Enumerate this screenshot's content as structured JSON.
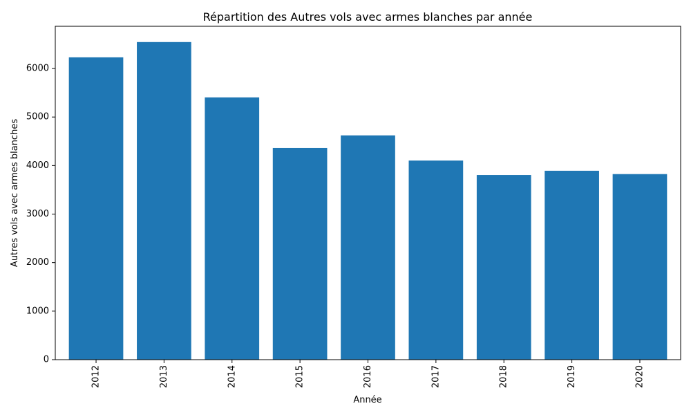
{
  "chart_data": {
    "type": "bar",
    "title": "Répartition des Autres vols avec armes blanches par année",
    "xlabel": "Année",
    "ylabel": "Autres vols avec armes blanches",
    "categories": [
      "2012",
      "2013",
      "2014",
      "2015",
      "2016",
      "2017",
      "2018",
      "2019",
      "2020"
    ],
    "values": [
      6230,
      6545,
      5405,
      4362,
      4622,
      4103,
      3805,
      3893,
      3824
    ],
    "yticks": [
      0,
      1000,
      2000,
      3000,
      4000,
      5000,
      6000
    ],
    "ylim": [
      0,
      6870
    ],
    "bar_color": "#1f77b4",
    "grid": false,
    "legend": "none"
  }
}
